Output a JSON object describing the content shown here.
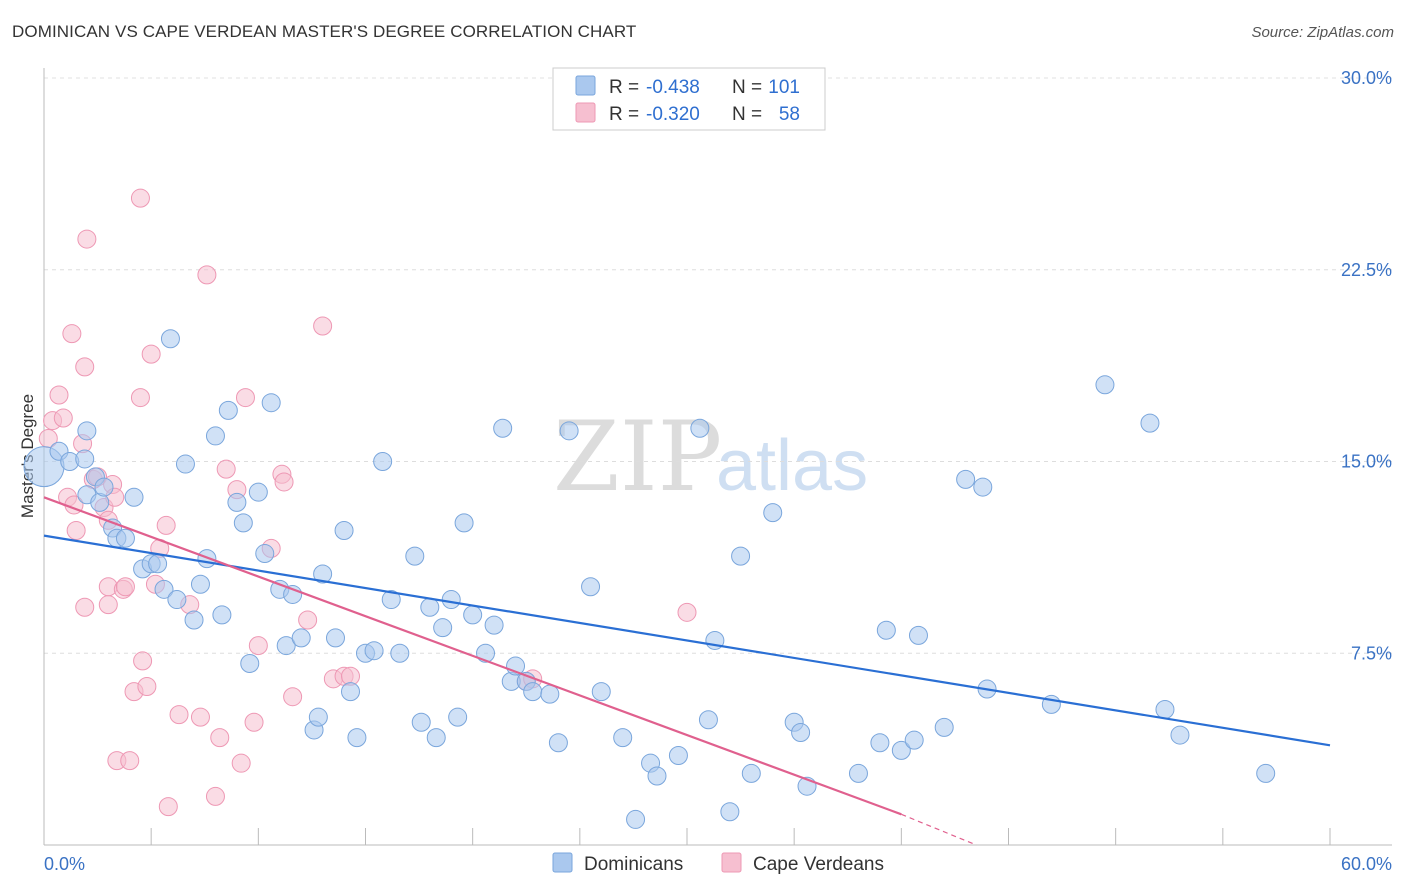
{
  "title": "DOMINICAN VS CAPE VERDEAN MASTER'S DEGREE CORRELATION CHART",
  "source": "Source: ZipAtlas.com",
  "watermark": {
    "zip": "ZIP",
    "atlas": "atlas"
  },
  "colors": {
    "dominicans_fill": "#aac8ee",
    "dominicans_stroke": "#7aa6dc",
    "dominicans_line": "#2a6fd4",
    "capeverdeans_fill": "#f6bfd0",
    "capeverdeans_stroke": "#ee98b4",
    "capeverdeans_line": "#e0608e",
    "axis_label": "#3a72c4",
    "grid": "#dddddd"
  },
  "legend": {
    "rows": [
      {
        "r_label": "R =",
        "r_value": "-0.438",
        "n_label": "N =",
        "n_value": "101"
      },
      {
        "r_label": "R =",
        "r_value": "-0.320",
        "n_label": "N =",
        "n_value": "58"
      }
    ],
    "bottom": [
      "Dominicans",
      "Cape Verdeans"
    ]
  },
  "chart_data": {
    "type": "scatter",
    "title": "DOMINICAN VS CAPE VERDEAN MASTER'S DEGREE CORRELATION CHART",
    "xlabel": "",
    "ylabel": "Master's Degree",
    "xlim": [
      0,
      60
    ],
    "ylim": [
      0,
      30
    ],
    "x_tick_labels": [
      "0.0%",
      "60.0%"
    ],
    "y_ticks": [
      7.5,
      15.0,
      22.5,
      30.0
    ],
    "y_tick_labels": [
      "7.5%",
      "15.0%",
      "22.5%",
      "30.0%"
    ],
    "grid": true,
    "legend_position": "top-center",
    "series": [
      {
        "name": "Dominicans",
        "R": -0.438,
        "N": 101,
        "trend": {
          "x": [
            0,
            60
          ],
          "y": [
            12.1,
            3.9
          ]
        },
        "points": [
          [
            0.0,
            14.8
          ],
          [
            0.7,
            15.4
          ],
          [
            1.2,
            15.0
          ],
          [
            1.9,
            15.1
          ],
          [
            2.0,
            13.7
          ],
          [
            2.0,
            16.2
          ],
          [
            2.4,
            14.4
          ],
          [
            2.6,
            13.4
          ],
          [
            2.8,
            14.0
          ],
          [
            3.2,
            12.4
          ],
          [
            3.4,
            12.0
          ],
          [
            3.8,
            12.0
          ],
          [
            4.2,
            13.6
          ],
          [
            4.6,
            10.8
          ],
          [
            5.0,
            11.0
          ],
          [
            5.3,
            11.0
          ],
          [
            5.6,
            10.0
          ],
          [
            5.9,
            19.8
          ],
          [
            6.2,
            9.6
          ],
          [
            6.6,
            14.9
          ],
          [
            7.0,
            8.8
          ],
          [
            7.3,
            10.2
          ],
          [
            7.6,
            11.2
          ],
          [
            8.0,
            16.0
          ],
          [
            8.3,
            9.0
          ],
          [
            8.6,
            17.0
          ],
          [
            9.0,
            13.4
          ],
          [
            9.3,
            12.6
          ],
          [
            9.6,
            7.1
          ],
          [
            10.0,
            13.8
          ],
          [
            10.3,
            11.4
          ],
          [
            10.6,
            17.3
          ],
          [
            11.0,
            10.0
          ],
          [
            11.3,
            7.8
          ],
          [
            11.6,
            9.8
          ],
          [
            12.0,
            8.1
          ],
          [
            12.6,
            4.5
          ],
          [
            12.8,
            5.0
          ],
          [
            13.0,
            10.6
          ],
          [
            13.6,
            8.1
          ],
          [
            14.0,
            12.3
          ],
          [
            14.3,
            6.0
          ],
          [
            14.6,
            4.2
          ],
          [
            15.0,
            7.5
          ],
          [
            15.4,
            7.6
          ],
          [
            15.8,
            15.0
          ],
          [
            16.2,
            9.6
          ],
          [
            16.6,
            7.5
          ],
          [
            17.3,
            11.3
          ],
          [
            17.6,
            4.8
          ],
          [
            18.0,
            9.3
          ],
          [
            18.3,
            4.2
          ],
          [
            18.6,
            8.5
          ],
          [
            19.0,
            9.6
          ],
          [
            19.3,
            5.0
          ],
          [
            19.6,
            12.6
          ],
          [
            20.0,
            9.0
          ],
          [
            20.6,
            7.5
          ],
          [
            21.0,
            8.6
          ],
          [
            21.4,
            16.3
          ],
          [
            21.8,
            6.4
          ],
          [
            22.0,
            7.0
          ],
          [
            22.5,
            6.4
          ],
          [
            22.8,
            6.0
          ],
          [
            23.6,
            5.9
          ],
          [
            24.0,
            4.0
          ],
          [
            24.5,
            16.2
          ],
          [
            25.5,
            10.1
          ],
          [
            26.0,
            6.0
          ],
          [
            27.0,
            4.2
          ],
          [
            27.6,
            1.0
          ],
          [
            28.3,
            3.2
          ],
          [
            28.6,
            2.7
          ],
          [
            29.6,
            3.5
          ],
          [
            30.6,
            16.3
          ],
          [
            31.0,
            4.9
          ],
          [
            31.3,
            8.0
          ],
          [
            32.0,
            1.3
          ],
          [
            32.5,
            11.3
          ],
          [
            33.0,
            2.8
          ],
          [
            34.0,
            13.0
          ],
          [
            35.0,
            4.8
          ],
          [
            35.3,
            4.4
          ],
          [
            35.6,
            2.3
          ],
          [
            38.0,
            2.8
          ],
          [
            39.0,
            4.0
          ],
          [
            39.3,
            8.4
          ],
          [
            40.0,
            3.7
          ],
          [
            40.6,
            4.1
          ],
          [
            40.8,
            8.2
          ],
          [
            42.0,
            4.6
          ],
          [
            43.0,
            14.3
          ],
          [
            43.8,
            14.0
          ],
          [
            44.0,
            6.1
          ],
          [
            47.0,
            5.5
          ],
          [
            49.5,
            18.0
          ],
          [
            51.6,
            16.5
          ],
          [
            52.3,
            5.3
          ],
          [
            53.0,
            4.3
          ],
          [
            57.0,
            2.8
          ]
        ]
      },
      {
        "name": "Cape Verdeans",
        "R": -0.32,
        "N": 58,
        "trend": {
          "x": [
            0,
            40
          ],
          "y": [
            13.6,
            1.2
          ]
        },
        "trend_dashed": {
          "x": [
            40,
            43.5
          ],
          "y": [
            1.2,
            0.0
          ]
        },
        "points": [
          [
            0.2,
            15.9
          ],
          [
            0.4,
            16.6
          ],
          [
            0.7,
            17.6
          ],
          [
            0.9,
            16.7
          ],
          [
            1.1,
            13.6
          ],
          [
            1.3,
            20.0
          ],
          [
            1.5,
            12.3
          ],
          [
            1.4,
            13.3
          ],
          [
            1.8,
            15.7
          ],
          [
            1.9,
            9.3
          ],
          [
            1.9,
            18.7
          ],
          [
            2.3,
            14.3
          ],
          [
            2.5,
            14.4
          ],
          [
            2.8,
            13.2
          ],
          [
            3.0,
            12.7
          ],
          [
            3.0,
            9.4
          ],
          [
            3.0,
            10.1
          ],
          [
            3.2,
            14.1
          ],
          [
            3.3,
            13.6
          ],
          [
            3.4,
            3.3
          ],
          [
            3.7,
            10.0
          ],
          [
            3.8,
            10.1
          ],
          [
            4.0,
            3.3
          ],
          [
            4.2,
            6.0
          ],
          [
            4.5,
            17.5
          ],
          [
            4.6,
            7.2
          ],
          [
            4.8,
            6.2
          ],
          [
            5.0,
            19.2
          ],
          [
            5.2,
            10.2
          ],
          [
            5.4,
            11.6
          ],
          [
            5.7,
            12.5
          ],
          [
            5.8,
            1.5
          ],
          [
            6.3,
            5.1
          ],
          [
            6.8,
            9.4
          ],
          [
            7.3,
            5.0
          ],
          [
            7.6,
            22.3
          ],
          [
            8.0,
            1.9
          ],
          [
            8.2,
            4.2
          ],
          [
            8.5,
            14.7
          ],
          [
            9.0,
            13.9
          ],
          [
            9.2,
            3.2
          ],
          [
            9.4,
            17.5
          ],
          [
            9.8,
            4.8
          ],
          [
            10.0,
            7.8
          ],
          [
            10.6,
            11.6
          ],
          [
            11.1,
            14.5
          ],
          [
            11.2,
            14.2
          ],
          [
            11.6,
            5.8
          ],
          [
            12.3,
            8.8
          ],
          [
            13.0,
            20.3
          ],
          [
            13.5,
            6.5
          ],
          [
            14.0,
            6.6
          ],
          [
            14.3,
            6.6
          ],
          [
            22.5,
            6.4
          ],
          [
            22.8,
            6.5
          ],
          [
            30.0,
            9.1
          ],
          [
            4.5,
            25.3
          ],
          [
            2.0,
            23.7
          ]
        ]
      }
    ]
  }
}
